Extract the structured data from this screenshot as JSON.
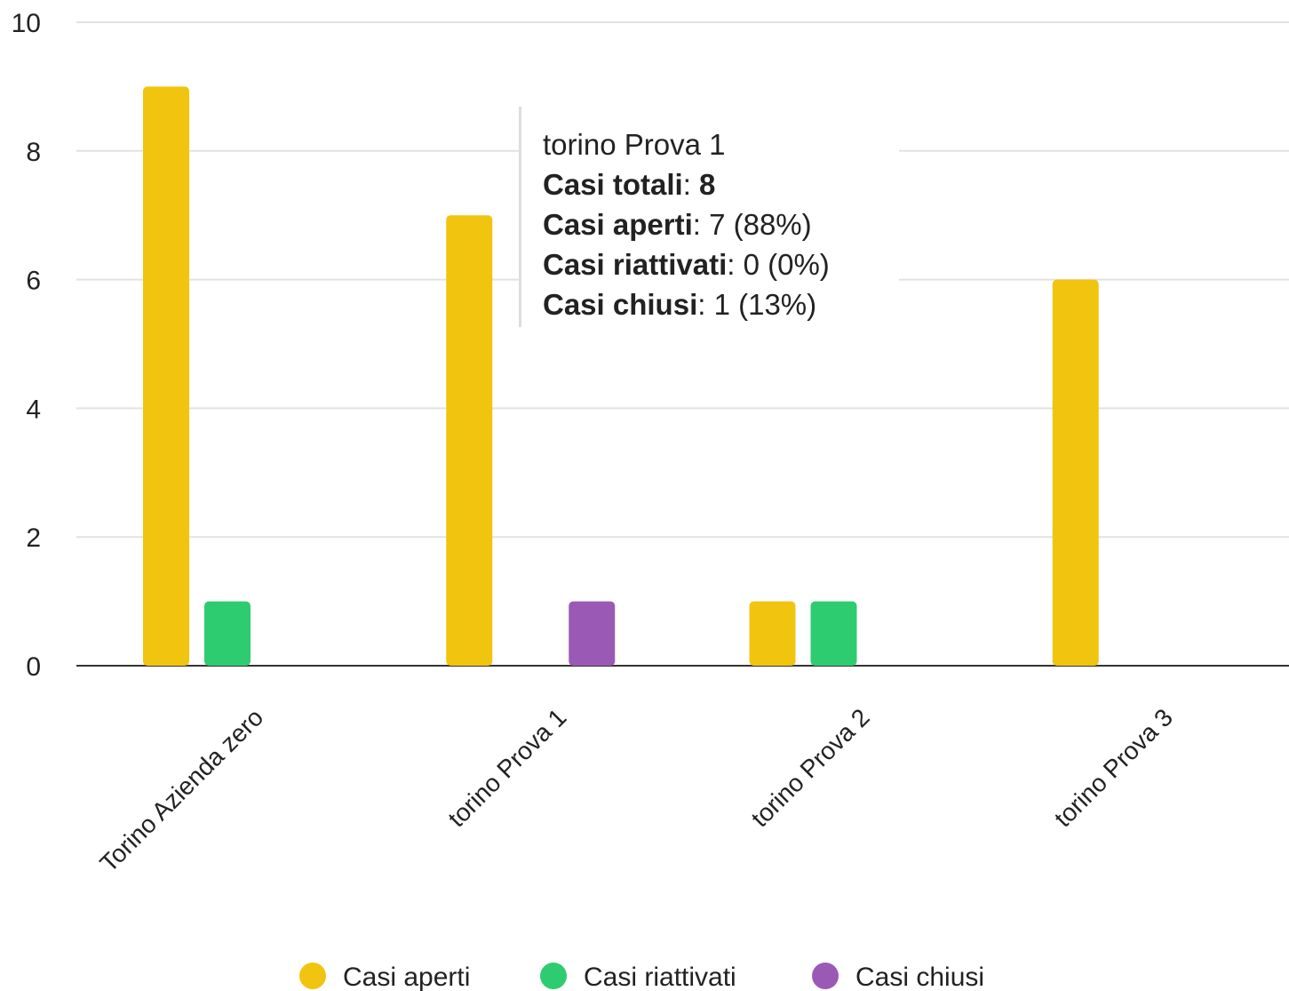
{
  "chart_data": {
    "type": "bar",
    "categories": [
      "Torino Azienda zero",
      "torino Prova 1",
      "torino Prova 2",
      "torino Prova 3"
    ],
    "series": [
      {
        "name": "Casi aperti",
        "color": "#f1c40f",
        "values": [
          9,
          7,
          1,
          6
        ]
      },
      {
        "name": "Casi riattivati",
        "color": "#2ecc71",
        "values": [
          1,
          0,
          1,
          0
        ]
      },
      {
        "name": "Casi chiusi",
        "color": "#9b59b6",
        "values": [
          0,
          1,
          0,
          0
        ]
      }
    ],
    "ylim": [
      0,
      10
    ],
    "yticks": [
      0,
      2,
      4,
      6,
      8,
      10
    ],
    "grid": true,
    "legend_position": "bottom"
  },
  "tooltip": {
    "title": "torino Prova 1",
    "lines": [
      {
        "label": "Casi totali",
        "value": "8"
      },
      {
        "label": "Casi aperti",
        "value": "7 (88%)"
      },
      {
        "label": "Casi riattivati",
        "value": "0 (0%)"
      },
      {
        "label": "Casi chiusi",
        "value": "1 (13%)"
      }
    ]
  }
}
